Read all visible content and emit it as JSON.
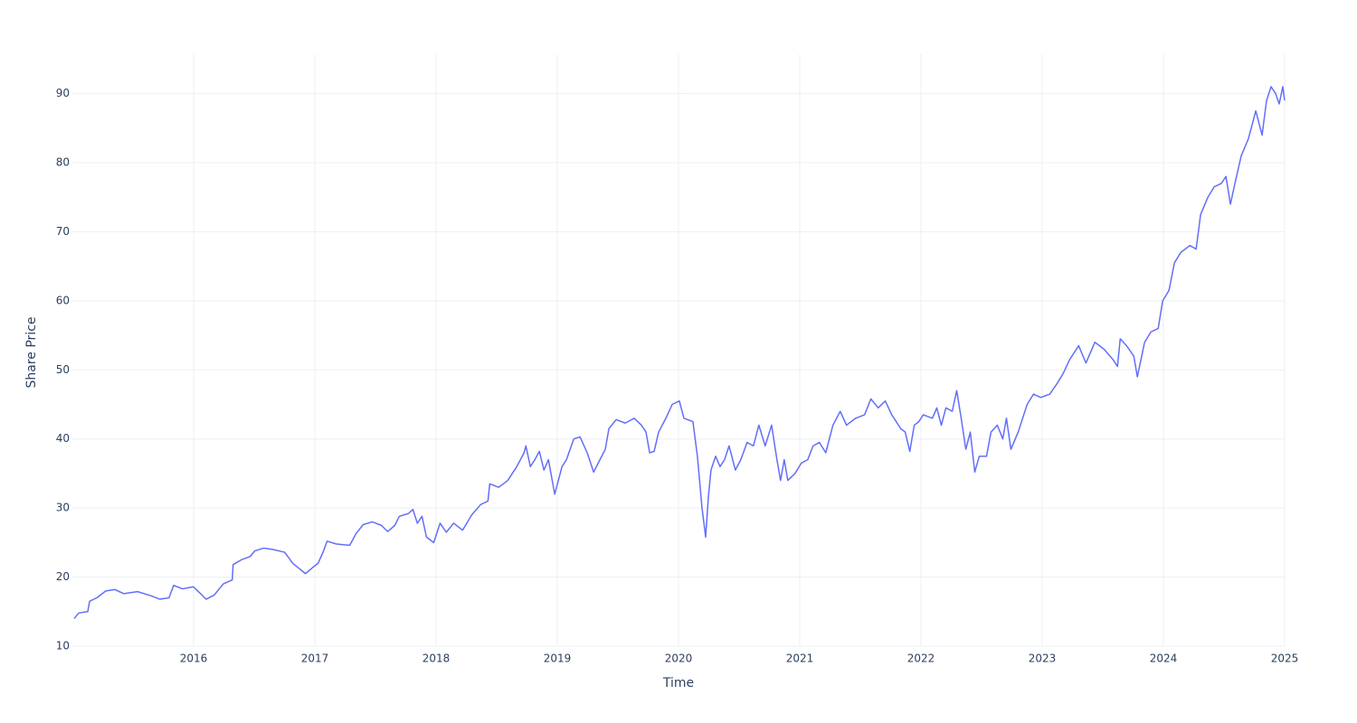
{
  "chart_data": {
    "type": "line",
    "x_label": "Time",
    "y_label": "Share Price",
    "color": "#636efa",
    "grid": true,
    "xlim": [
      2015,
      2025
    ],
    "xticks": [
      2016,
      2017,
      2018,
      2019,
      2020,
      2021,
      2022,
      2023,
      2024,
      2025
    ],
    "ylim": [
      10,
      95.7
    ],
    "yticks": [
      10,
      20,
      30,
      40,
      50,
      60,
      70,
      80,
      90
    ],
    "x": [
      2015.015,
      2015.052,
      2015.127,
      2015.142,
      2015.201,
      2015.276,
      2015.35,
      2015.425,
      2015.537,
      2015.648,
      2015.723,
      2015.797,
      2015.835,
      2015.909,
      2015.998,
      2016.058,
      2016.103,
      2016.17,
      2016.244,
      2016.319,
      2016.326,
      2016.393,
      2016.468,
      2016.505,
      2016.58,
      2016.654,
      2016.751,
      2016.818,
      2016.923,
      2016.99,
      2017.027,
      2017.072,
      2017.101,
      2017.176,
      2017.288,
      2017.34,
      2017.399,
      2017.474,
      2017.548,
      2017.601,
      2017.66,
      2017.697,
      2017.772,
      2017.809,
      2017.846,
      2017.884,
      2017.921,
      2017.981,
      2018.033,
      2018.085,
      2018.145,
      2018.219,
      2018.294,
      2018.368,
      2018.428,
      2018.443,
      2018.517,
      2018.592,
      2018.666,
      2018.726,
      2018.741,
      2018.778,
      2018.815,
      2018.852,
      2018.89,
      2018.927,
      2018.979,
      2019.039,
      2019.076,
      2019.136,
      2019.188,
      2019.247,
      2019.3,
      2019.352,
      2019.396,
      2019.426,
      2019.486,
      2019.56,
      2019.635,
      2019.694,
      2019.732,
      2019.762,
      2019.799,
      2019.836,
      2019.896,
      2019.948,
      2020.007,
      2020.045,
      2020.119,
      2020.156,
      2020.194,
      2020.224,
      2020.246,
      2020.268,
      2020.306,
      2020.343,
      2020.38,
      2020.417,
      2020.469,
      2020.514,
      2020.566,
      2020.618,
      2020.663,
      2020.715,
      2020.768,
      2020.812,
      2020.842,
      2020.872,
      2020.902,
      2020.961,
      2021.013,
      2021.066,
      2021.11,
      2021.162,
      2021.215,
      2021.274,
      2021.334,
      2021.386,
      2021.461,
      2021.535,
      2021.587,
      2021.647,
      2021.706,
      2021.759,
      2021.833,
      2021.87,
      2021.908,
      2021.945,
      2021.982,
      2022.019,
      2022.094,
      2022.131,
      2022.168,
      2022.206,
      2022.258,
      2022.295,
      2022.332,
      2022.37,
      2022.407,
      2022.444,
      2022.481,
      2022.541,
      2022.578,
      2022.63,
      2022.675,
      2022.705,
      2022.742,
      2022.802,
      2022.876,
      2022.929,
      2022.988,
      2023.063,
      2023.122,
      2023.174,
      2023.227,
      2023.301,
      2023.361,
      2023.435,
      2023.51,
      2023.584,
      2023.621,
      2023.644,
      2023.696,
      2023.756,
      2023.785,
      2023.845,
      2023.897,
      2023.957,
      2023.994,
      2024.046,
      2024.091,
      2024.143,
      2024.218,
      2024.27,
      2024.307,
      2024.367,
      2024.419,
      2024.478,
      2024.516,
      2024.553,
      2024.59,
      2024.642,
      2024.702,
      2024.762,
      2024.814,
      2024.851,
      2024.888,
      2024.926,
      2024.955,
      2024.985,
      2025.0
    ],
    "values": [
      14.0,
      14.8,
      15.0,
      16.5,
      17.0,
      18.0,
      18.2,
      17.6,
      17.9,
      17.3,
      16.8,
      17.0,
      18.8,
      18.3,
      18.6,
      17.6,
      16.8,
      17.4,
      19.0,
      19.6,
      21.8,
      22.5,
      23.0,
      23.8,
      24.2,
      24.0,
      23.6,
      22.0,
      20.5,
      21.5,
      22.0,
      23.8,
      25.2,
      24.8,
      24.6,
      26.3,
      27.6,
      28.0,
      27.5,
      26.6,
      27.5,
      28.8,
      29.2,
      29.8,
      27.8,
      28.8,
      25.8,
      25.0,
      27.8,
      26.5,
      27.8,
      26.8,
      29.0,
      30.5,
      31.0,
      33.5,
      33.0,
      34.0,
      36.0,
      38.0,
      39.0,
      36.0,
      37.0,
      38.2,
      35.5,
      37.0,
      32.0,
      36.0,
      37.0,
      40.0,
      40.3,
      38.0,
      35.2,
      37.0,
      38.5,
      41.5,
      42.8,
      42.3,
      43.0,
      42.0,
      41.0,
      38.0,
      38.2,
      41.0,
      43.0,
      45.0,
      45.5,
      43.0,
      42.5,
      37.5,
      30.0,
      25.8,
      31.5,
      35.5,
      37.5,
      36.0,
      37.0,
      39.0,
      35.5,
      37.0,
      39.5,
      39.0,
      42.0,
      39.0,
      42.0,
      37.0,
      34.0,
      37.0,
      34.0,
      35.0,
      36.5,
      37.0,
      39.0,
      39.5,
      38.0,
      42.0,
      44.0,
      42.0,
      43.0,
      43.5,
      45.8,
      44.5,
      45.5,
      43.5,
      41.5,
      41.0,
      38.2,
      42.0,
      42.5,
      43.5,
      43.0,
      44.5,
      42.0,
      44.5,
      44.0,
      47.0,
      43.0,
      38.5,
      41.0,
      35.2,
      37.5,
      37.5,
      41.0,
      42.0,
      40.0,
      43.0,
      38.5,
      41.0,
      45.0,
      46.5,
      46.0,
      46.5,
      48.0,
      49.5,
      51.5,
      53.5,
      51.0,
      54.0,
      53.0,
      51.5,
      50.5,
      54.5,
      53.5,
      52.0,
      49.0,
      54.0,
      55.5,
      56.0,
      60.0,
      61.5,
      65.5,
      67.0,
      68.0,
      67.5,
      72.5,
      75.0,
      76.5,
      77.0,
      78.0,
      74.0,
      77.0,
      81.0,
      83.5,
      87.5,
      84.0,
      89.0,
      91.0,
      90.0,
      88.5,
      91.0,
      89.0
    ]
  }
}
